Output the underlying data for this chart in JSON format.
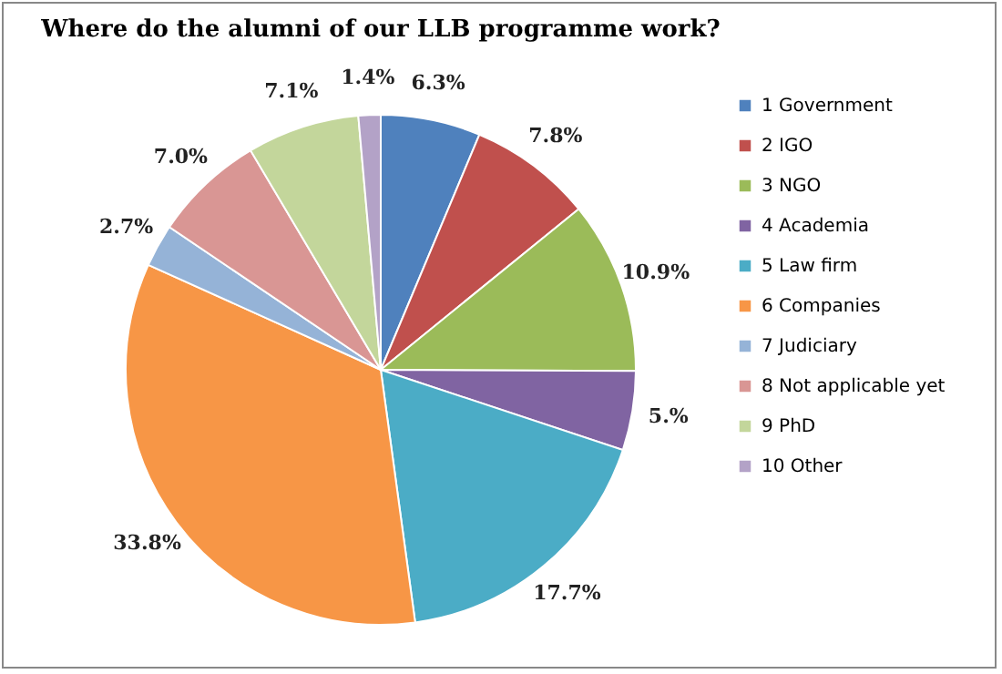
{
  "chart_data": {
    "type": "pie",
    "title": "Where do the alumni of our LLB programme work?",
    "categories": [
      "1 Government",
      "2 IGO",
      "3 NGO",
      "4 Academia",
      "5 Law firm",
      "6 Companies",
      "7 Judiciary",
      "8 Not applicable yet",
      "9 PhD",
      "10 Other"
    ],
    "values": [
      6.3,
      7.8,
      10.9,
      5,
      17.7,
      33.8,
      2.7,
      7.0,
      7.1,
      1.4
    ],
    "value_labels": [
      "6.3%",
      "7.8%",
      "10.9%",
      "5.%",
      "17.7%",
      "33.8%",
      "2.7%",
      "7.0%",
      "7.1%",
      "1.4%"
    ],
    "colors": [
      "#4f81bd",
      "#c0504d",
      "#9bbb59",
      "#8064a2",
      "#4bacc6",
      "#f79646",
      "#95b3d7",
      "#d99694",
      "#c3d69b",
      "#b3a2c7"
    ],
    "legend": "right"
  }
}
